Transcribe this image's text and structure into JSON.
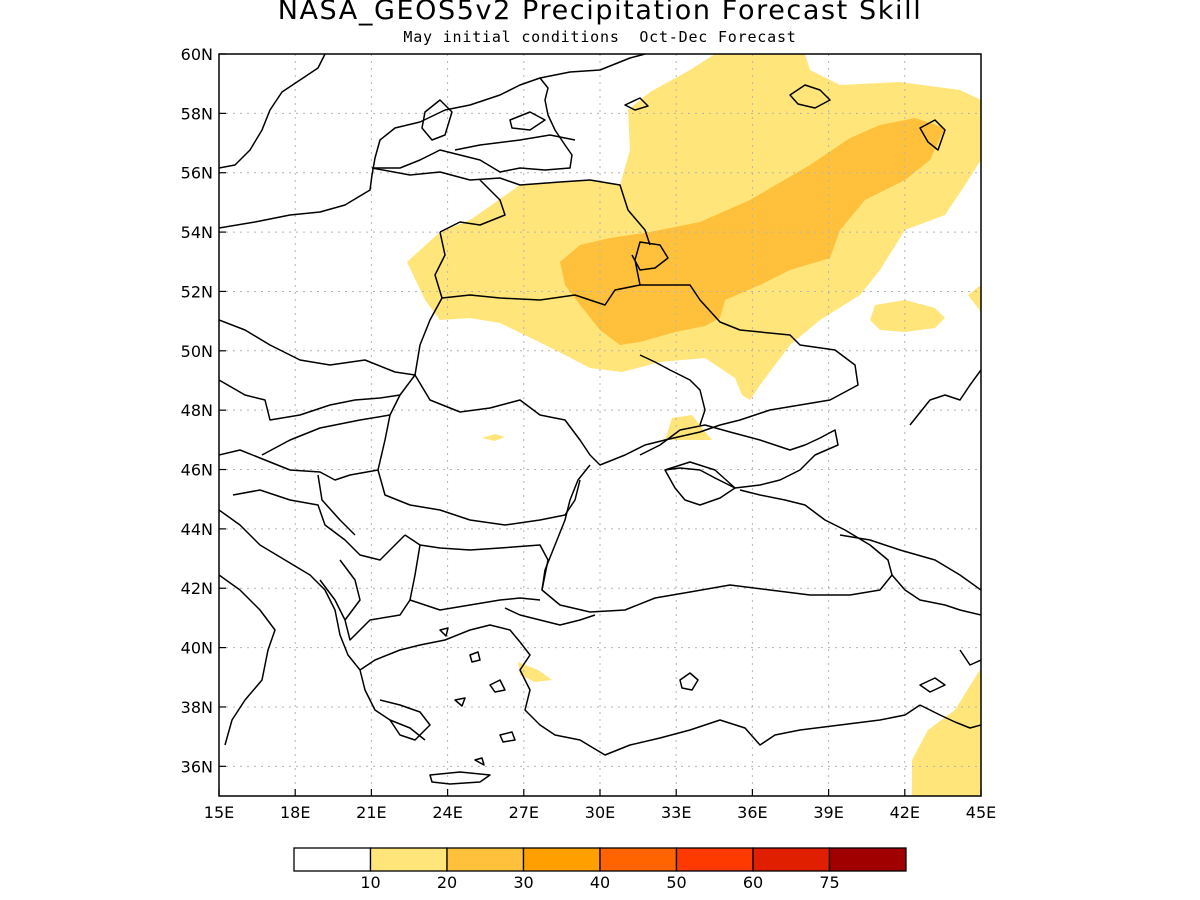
{
  "title": "NASA_GEOS5v2 Precipitation Forecast Skill",
  "subtitle": "May initial conditions  Oct-Dec Forecast",
  "map": {
    "region": "Eastern Europe / Black Sea",
    "lon_range": [
      15,
      45
    ],
    "lat_range": [
      35,
      60
    ],
    "lon_ticks": [
      "15E",
      "18E",
      "21E",
      "24E",
      "27E",
      "30E",
      "33E",
      "36E",
      "39E",
      "42E",
      "45E"
    ],
    "lat_ticks": [
      "36N",
      "38N",
      "40N",
      "42N",
      "44N",
      "46N",
      "48N",
      "50N",
      "52N",
      "54N",
      "56N",
      "58N",
      "60N"
    ],
    "grid": "dotted",
    "coastlines": true,
    "country_borders": true
  },
  "legend": {
    "colors": [
      "#ffffff",
      "#ffe57a",
      "#ffc03c",
      "#ffa000",
      "#ff6400",
      "#ff3a00",
      "#e01e00",
      "#a00000"
    ],
    "labels": [
      "10",
      "20",
      "30",
      "40",
      "50",
      "60",
      "75"
    ]
  }
}
